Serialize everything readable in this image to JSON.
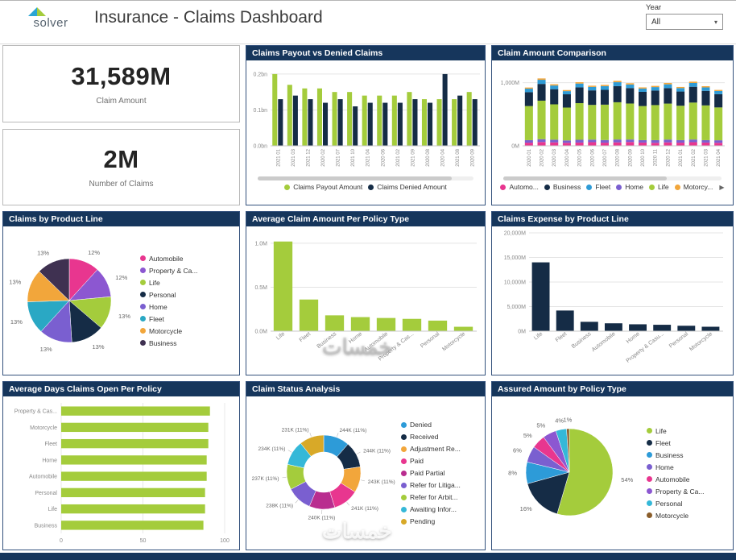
{
  "header": {
    "logo": "solver",
    "title": "Insurance - Claims Dashboard",
    "year_label": "Year",
    "year_value": "All",
    "year_dropdown_icon": "▾"
  },
  "kpis": [
    {
      "value": "31,589M",
      "label": "Claim Amount"
    },
    {
      "value": "2M",
      "label": "Number of Claims"
    }
  ],
  "watermark": {
    "text": "خمسات"
  },
  "colors": {
    "accent_navy": "#16365c",
    "green": "#a4cc3c",
    "navy": "#152c46"
  },
  "chart_data": [
    {
      "type": "bar",
      "title": "Claims Payout vs Denied Claims",
      "ymax": 0.22,
      "yticks": [
        [
          0,
          "0.0bn"
        ],
        [
          0.1,
          "0.1bn"
        ],
        [
          0.2,
          "0.2bn"
        ]
      ],
      "grid": true,
      "xrot": -90,
      "xfs": 6,
      "margins": {
        "l": 30,
        "r": 6,
        "t": 8,
        "b": 36
      },
      "categories": [
        "2021 01",
        "2021 03",
        "2021 12",
        "2020 02",
        "2021 07",
        "2021 10",
        "2021 04",
        "2020 06",
        "2021 02",
        "2021 09",
        "2020 08",
        "2020 04",
        "2021 08",
        "2020 09"
      ],
      "series": [
        {
          "name": "Claims Payout Amount",
          "color": "#a4cc3c",
          "values": [
            0.2,
            0.17,
            0.16,
            0.16,
            0.15,
            0.15,
            0.14,
            0.14,
            0.14,
            0.15,
            0.13,
            0.13,
            0.13,
            0.15
          ]
        },
        {
          "name": "Claims Denied Amount",
          "color": "#152c46",
          "values": [
            0.13,
            0.14,
            0.13,
            0.12,
            0.13,
            0.11,
            0.12,
            0.12,
            0.12,
            0.13,
            0.12,
            0.2,
            0.14,
            0.13
          ]
        }
      ],
      "legend": [
        {
          "label": "Claims Payout Amount",
          "color": "#a4cc3c"
        },
        {
          "label": "Claims Denied Amount",
          "color": "#152c46"
        }
      ]
    },
    {
      "type": "bar",
      "stacked": true,
      "title": "Claim Amount Comparison",
      "ymax": 1250,
      "yticks": [
        [
          0,
          "0M"
        ],
        [
          1000,
          "1,000M"
        ]
      ],
      "grid": true,
      "xrot": -90,
      "xfs": 6,
      "margins": {
        "l": 38,
        "r": 10,
        "t": 8,
        "b": 36
      },
      "categories": [
        "2020 01",
        "2020 02",
        "2020 03",
        "2020 04",
        "2020 05",
        "2020 06",
        "2020 07",
        "2020 08",
        "2020 09",
        "2020 10",
        "2020 11",
        "2020 12",
        "2021 01",
        "2021 02",
        "2021 03",
        "2021 04"
      ],
      "series": [
        {
          "name": "Automobile",
          "color": "#e8368f",
          "values": [
            50,
            60,
            55,
            48,
            52,
            58,
            50,
            55,
            60,
            52,
            48,
            55,
            50,
            58,
            52,
            48
          ]
        },
        {
          "name": "Home",
          "color": "#7a5fd0",
          "values": [
            40,
            45,
            42,
            38,
            44,
            40,
            42,
            45,
            40,
            38,
            42,
            44,
            40,
            42,
            38,
            40
          ]
        },
        {
          "name": "Life",
          "color": "#a4cc3c",
          "values": [
            540,
            610,
            560,
            520,
            580,
            550,
            560,
            590,
            570,
            540,
            555,
            570,
            545,
            585,
            550,
            520
          ]
        },
        {
          "name": "Business",
          "color": "#152c46",
          "values": [
            220,
            265,
            240,
            210,
            250,
            230,
            235,
            255,
            245,
            225,
            230,
            245,
            225,
            250,
            230,
            210
          ]
        },
        {
          "name": "Fleet",
          "color": "#2e9bd6",
          "values": [
            55,
            65,
            58,
            50,
            60,
            55,
            58,
            62,
            56,
            52,
            55,
            60,
            54,
            60,
            55,
            50
          ]
        },
        {
          "name": "Motorcycle",
          "color": "#f2a63b",
          "values": [
            18,
            22,
            20,
            17,
            21,
            19,
            20,
            22,
            20,
            18,
            19,
            21,
            18,
            21,
            19,
            17
          ]
        }
      ],
      "legend": [
        {
          "label": "Automo...",
          "color": "#e8368f"
        },
        {
          "label": "Business",
          "color": "#152c46"
        },
        {
          "label": "Fleet",
          "color": "#2e9bd6"
        },
        {
          "label": "Home",
          "color": "#7a5fd0"
        },
        {
          "label": "Life",
          "color": "#a4cc3c"
        },
        {
          "label": "Motorcy...",
          "color": "#f2a63b"
        }
      ],
      "legend_more": "▶"
    },
    {
      "type": "pie",
      "title": "Claims by Product Line",
      "cx": 82,
      "cy": 90,
      "r": 52,
      "label_r": 12,
      "label_fs": 7.5,
      "slices": [
        {
          "label": "Automobile",
          "color": "#e8368f",
          "value": 12,
          "text": "12%"
        },
        {
          "label": "Property & Ca...",
          "color": "#8c57d1",
          "value": 12,
          "text": "12%"
        },
        {
          "label": "Life",
          "color": "#a4cc3c",
          "value": 13,
          "text": "13%"
        },
        {
          "label": "Personal",
          "color": "#152c46",
          "value": 13,
          "text": "13%"
        },
        {
          "label": "Home",
          "color": "#7a5fd0",
          "value": 13,
          "text": "13%"
        },
        {
          "label": "Fleet",
          "color": "#2aa8c4",
          "value": 13,
          "text": "13%"
        },
        {
          "label": "Motorcycle",
          "color": "#f2a63b",
          "value": 13,
          "text": "13%"
        },
        {
          "label": "Business",
          "color": "#3f3151",
          "value": 13,
          "text": "13%"
        }
      ]
    },
    {
      "type": "bar",
      "title": "Average Claim Amount Per Policy Type",
      "ymax": 1.1,
      "yticks": [
        [
          0,
          "0.0M"
        ],
        [
          0.5,
          "0.5M"
        ],
        [
          1.0,
          "1.0M"
        ]
      ],
      "grid": true,
      "xrot": -38,
      "xfs": 7,
      "margins": {
        "l": 30,
        "r": 10,
        "t": 10,
        "b": 52
      },
      "categories": [
        "Life",
        "Fleet",
        "Business",
        "Home",
        "Automobile",
        "Property & Cas...",
        "Personal",
        "Motorcycle"
      ],
      "series": [
        {
          "name": "Average Claim Amount",
          "color": "#a4cc3c",
          "values": [
            1.02,
            0.36,
            0.18,
            0.16,
            0.15,
            0.14,
            0.12,
            0.05
          ]
        }
      ]
    },
    {
      "type": "bar",
      "title": "Claims Expense by Product Line",
      "ymax": 20000,
      "yticks": [
        [
          0,
          "0M"
        ],
        [
          5000,
          "5,000M"
        ],
        [
          10000,
          "10,000M"
        ],
        [
          15000,
          "15,000M"
        ],
        [
          20000,
          "20,000M"
        ]
      ],
      "grid": true,
      "xrot": -38,
      "xfs": 7,
      "margins": {
        "l": 46,
        "r": 12,
        "t": 8,
        "b": 52
      },
      "categories": [
        "Life",
        "Fleet",
        "Business",
        "Automobile",
        "Home",
        "Property & Casu...",
        "Personal",
        "Motorcycle"
      ],
      "series": [
        {
          "name": "Claims Expense",
          "color": "#152c46",
          "values": [
            14000,
            4200,
            1900,
            1600,
            1400,
            1300,
            1100,
            900
          ]
        }
      ]
    },
    {
      "type": "hbar",
      "title": "Average Days Claims Open Per Policy",
      "xmax": 100,
      "xticks": [
        [
          0,
          "0"
        ],
        [
          50,
          "50"
        ],
        [
          100,
          "100"
        ]
      ],
      "margins": {
        "l": 72,
        "r": 18,
        "t": 8,
        "b": 18
      },
      "categories": [
        "Property & Cas...",
        "Motorcycle",
        "Fleet",
        "Home",
        "Automobile",
        "Personal",
        "Life",
        "Business"
      ],
      "values": [
        91,
        90,
        90,
        89,
        89,
        88,
        88,
        87
      ],
      "color": "#a4cc3c"
    },
    {
      "type": "pie",
      "donut": 0.55,
      "leader": true,
      "title": "Claim Status Analysis",
      "cx": 96,
      "cy": 92,
      "r": 46,
      "label_r": 10,
      "label_fs": 6.5,
      "slices": [
        {
          "label": "Denied",
          "color": "#2d9bd8",
          "value": 244,
          "text": "244K (11%)"
        },
        {
          "label": "Received",
          "color": "#152c46",
          "value": 244,
          "text": "244K (11%)"
        },
        {
          "label": "Adjustment Re...",
          "color": "#f2a63b",
          "value": 243,
          "text": "243K (11%)"
        },
        {
          "label": "Paid",
          "color": "#e8368f",
          "value": 241,
          "text": "241K (11%)"
        },
        {
          "label": "Paid Partial",
          "color": "#b92d8f",
          "value": 240,
          "text": "240K (11%)"
        },
        {
          "label": "Refer for Litiga...",
          "color": "#7a5fd0",
          "value": 238,
          "text": "238K (11%)"
        },
        {
          "label": "Refer for Arbit...",
          "color": "#a4cc3c",
          "value": 237,
          "text": "237K (11%)"
        },
        {
          "label": "Awaiting Infor...",
          "color": "#35b8d8",
          "value": 234,
          "text": "234K (11%)"
        },
        {
          "label": "Pending",
          "color": "#d8a928",
          "value": 231,
          "text": "231K (11%)"
        }
      ]
    },
    {
      "type": "pie",
      "title": "Assured Amount by Policy Type",
      "cx": 96,
      "cy": 92,
      "r": 54,
      "label_r": 11,
      "label_fs": 7.5,
      "slices": [
        {
          "label": "Life",
          "color": "#a4cc3c",
          "value": 54,
          "text": "54%"
        },
        {
          "label": "Fleet",
          "color": "#152c46",
          "value": 16,
          "text": "16%"
        },
        {
          "label": "Business",
          "color": "#2d9bd8",
          "value": 8,
          "text": "8%"
        },
        {
          "label": "Home",
          "color": "#7a5fd0",
          "value": 6,
          "text": "6%"
        },
        {
          "label": "Automobile",
          "color": "#e8368f",
          "value": 5,
          "text": "5%"
        },
        {
          "label": "Property & Ca...",
          "color": "#8c57d1",
          "value": 5,
          "text": "5%"
        },
        {
          "label": "Personal",
          "color": "#35b8d8",
          "value": 4,
          "text": "4%"
        },
        {
          "label": "Motorcycle",
          "color": "#8a5d2a",
          "value": 1,
          "text": "1%"
        }
      ]
    }
  ]
}
